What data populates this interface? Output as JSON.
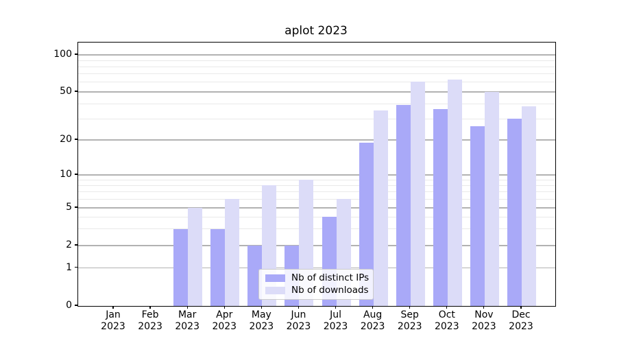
{
  "chart_data": {
    "type": "bar",
    "title": "aplot 2023",
    "yscale": "symlog",
    "grid": true,
    "ylim": [
      0,
      127
    ],
    "xlabel": "",
    "ylabel": "",
    "categories": [
      "Jan",
      "Feb",
      "Mar",
      "Apr",
      "May",
      "Jun",
      "Jul",
      "Aug",
      "Sep",
      "Oct",
      "Nov",
      "Dec"
    ],
    "category_sublabel": "2023",
    "y_major_ticks": [
      0,
      1,
      2,
      5,
      10,
      20,
      50,
      100
    ],
    "y_minor_ticks": [
      3,
      4,
      6,
      7,
      8,
      9,
      30,
      40,
      60,
      70,
      80,
      90
    ],
    "series": [
      {
        "name": "Nb of distinct IPs",
        "color": "#a9a9f8",
        "values": [
          0,
          0,
          3,
          3,
          2,
          2,
          4,
          19,
          39,
          36,
          26,
          30
        ]
      },
      {
        "name": "Nb of downloads",
        "color": "#dcdcf8",
        "values": [
          0,
          0,
          5,
          6,
          8,
          9,
          6,
          35,
          61,
          63,
          50,
          38
        ]
      }
    ],
    "legend": {
      "location": "lower center"
    },
    "colors": {
      "grid_major": "#b2b2b2",
      "grid_minor": "#e9e9e9",
      "axis": "#000000",
      "background": "#ffffff"
    }
  }
}
